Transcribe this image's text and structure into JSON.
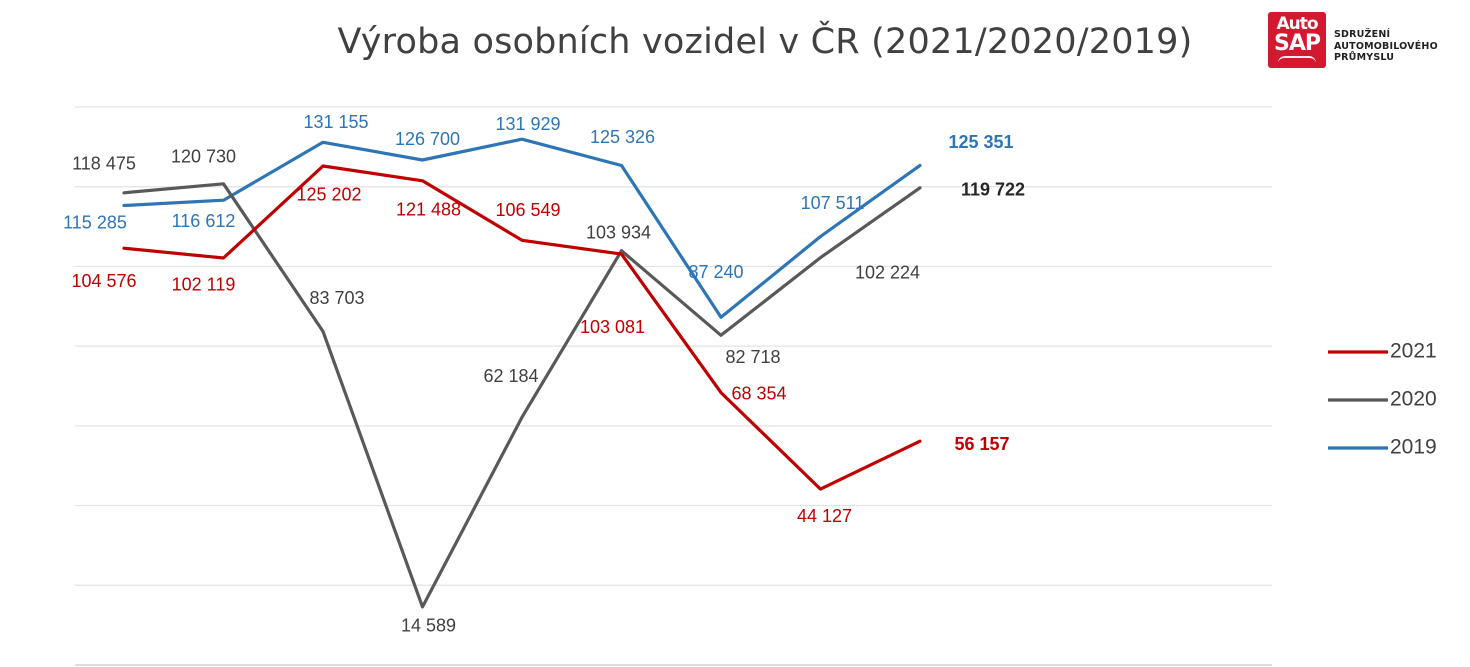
{
  "chart_data": {
    "type": "line",
    "title": "Výroba osobních vozidel v ČR (2021/2020/2019)",
    "xlabel": "",
    "ylabel": "",
    "ylim": [
      0,
      140000
    ],
    "grid": true,
    "legend_position": "right",
    "x": [
      1,
      2,
      3,
      4,
      5,
      6,
      7,
      8,
      9
    ],
    "series": [
      {
        "name": "2021",
        "color": "#c00000",
        "values": [
          104576,
          102119,
          125202,
          121488,
          106549,
          103081,
          68354,
          44127,
          56157
        ],
        "labels": [
          "104 576",
          "102 119",
          "125 202",
          "121 488",
          "106 549",
          "103 081",
          "68 354",
          "44 127",
          "56 157"
        ]
      },
      {
        "name": "2020",
        "color": "#595959",
        "values": [
          118475,
          120730,
          83703,
          14589,
          62184,
          103934,
          82718,
          102224,
          119722
        ],
        "labels": [
          "118 475",
          "120 730",
          "83 703",
          "14 589",
          "62 184",
          "103 934",
          "82 718",
          "102 224",
          "119 722"
        ]
      },
      {
        "name": "2019",
        "color": "#2e75b6",
        "values": [
          115285,
          116612,
          131155,
          126700,
          131929,
          125326,
          87240,
          107511,
          125351
        ],
        "labels": [
          "115 285",
          "116 612",
          "131 155",
          "126 700",
          "131 929",
          "125 326",
          "87 240",
          "107 511",
          "125 351"
        ]
      }
    ]
  },
  "logo": {
    "line1": "Auto",
    "line2": "SAP",
    "text_lines": [
      "SDRUŽENÍ",
      "AUTOMOBILOVÉHO",
      "PRŮMYSLU"
    ]
  }
}
